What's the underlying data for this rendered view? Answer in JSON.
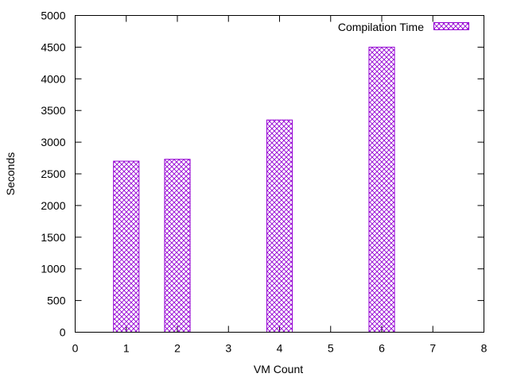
{
  "chart_data": {
    "type": "bar",
    "title": "",
    "xlabel": "VM Count",
    "ylabel": "Seconds",
    "x": [
      1,
      2,
      4,
      6
    ],
    "series": [
      {
        "name": "Compilation Time",
        "values": [
          2700,
          2730,
          3350,
          4500
        ],
        "color": "#9400d3",
        "fill_pattern": "crosshatch"
      }
    ],
    "xlim": [
      0,
      8
    ],
    "ylim": [
      0,
      5000
    ],
    "xticks": [
      "0",
      "1",
      "2",
      "3",
      "4",
      "5",
      "6",
      "7",
      "8"
    ],
    "yticks": [
      "0",
      "500",
      "1000",
      "1500",
      "2000",
      "2500",
      "3000",
      "3500",
      "4000",
      "4500",
      "5000"
    ],
    "legend": {
      "position": "top-right",
      "entries": [
        "Compilation Time"
      ]
    },
    "grid": false
  }
}
